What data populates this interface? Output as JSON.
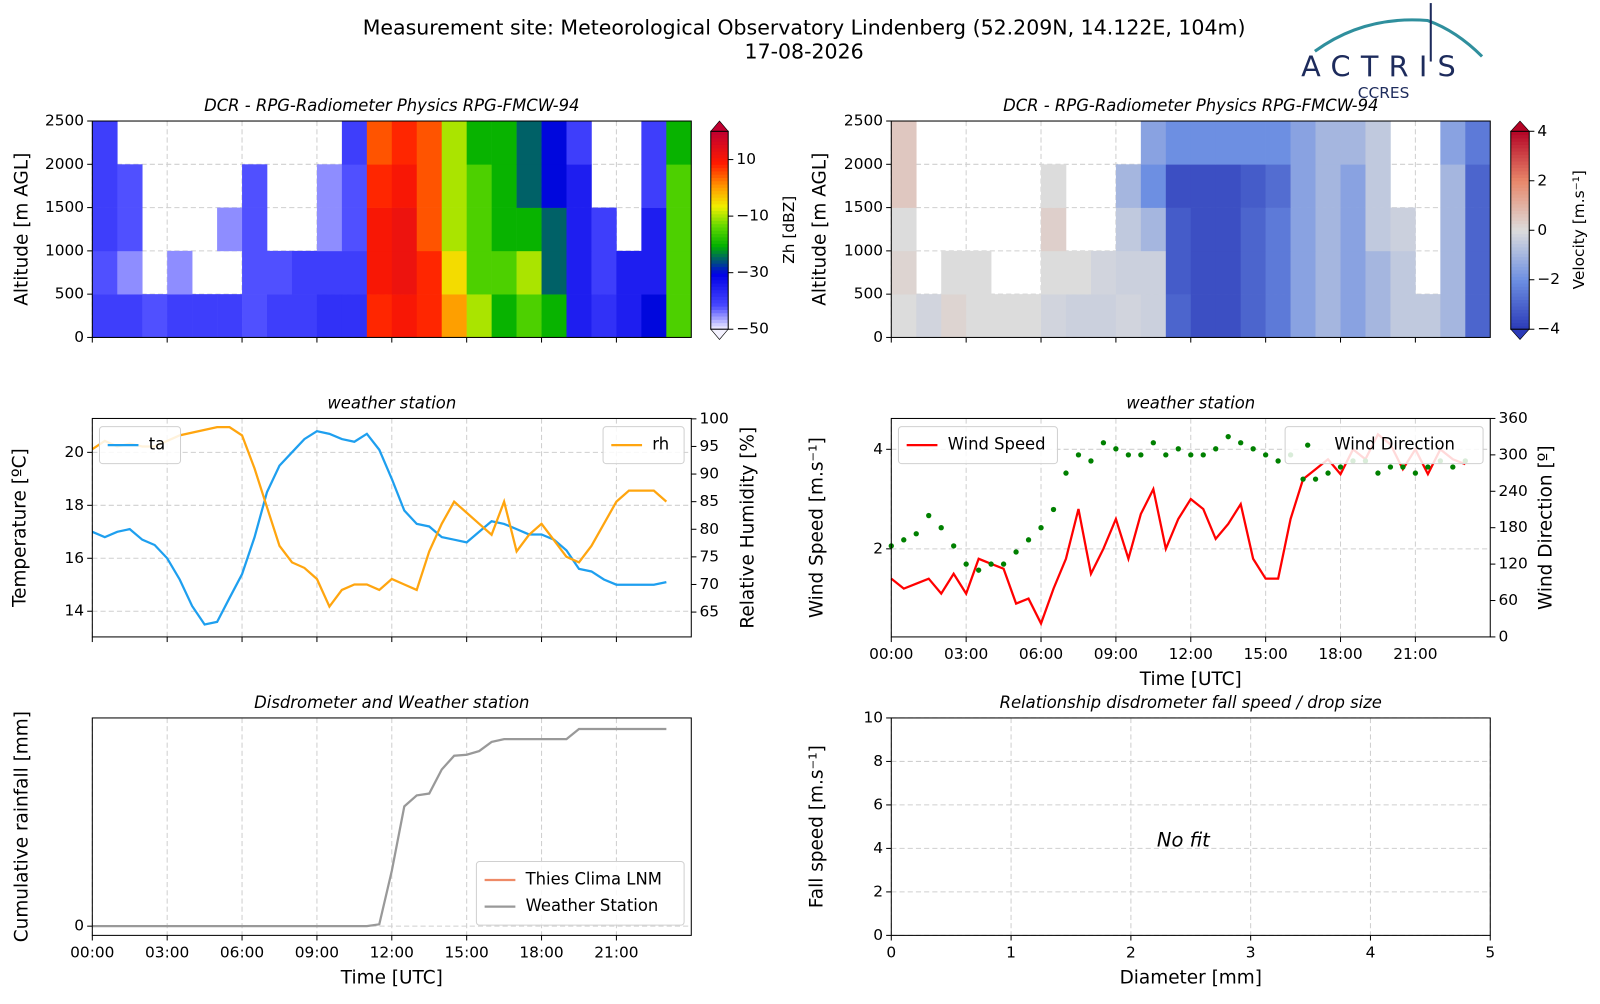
{
  "header": {
    "title": "Measurement site: Meteorological Observatory Lindenberg (52.209N, 14.122E, 104m)",
    "date": "17-08-2026",
    "logo": "ACTRIS",
    "logo_sub": "CCRES"
  },
  "chart_data": [
    {
      "type": "heatmap",
      "title": "DCR - RPG-Radiometer Physics RPG-FMCW-94",
      "ylabel": "Altitude [m AGL]",
      "xlim": [
        0,
        24
      ],
      "xticks": [
        0,
        3,
        6,
        9,
        12,
        15,
        18,
        21
      ],
      "xtick_labels": false,
      "ylim": [
        0,
        2500
      ],
      "yticks": [
        0,
        500,
        1000,
        1500,
        2000,
        2500
      ],
      "grid": true,
      "xbins": [
        0,
        1,
        2,
        3,
        4,
        5,
        6,
        7,
        8,
        9,
        10,
        11,
        12,
        13,
        14,
        15,
        16,
        17,
        18,
        19,
        20,
        21,
        22,
        23,
        24
      ],
      "ybins": [
        0,
        500,
        1000,
        1500,
        2000,
        2500
      ],
      "values": [
        [
          -40,
          -40,
          -42,
          -40,
          -40,
          -40,
          -42,
          -40,
          -40,
          -38,
          -38,
          8,
          10,
          8,
          0,
          -10,
          -20,
          -15,
          -20,
          -35,
          -38,
          -35,
          -30,
          -15
        ],
        [
          -42,
          -45,
          null,
          -45,
          null,
          null,
          -42,
          -42,
          -40,
          -40,
          -40,
          10,
          12,
          8,
          -5,
          -15,
          -15,
          -10,
          -25,
          -35,
          -40,
          -35,
          -35,
          -15
        ],
        [
          -40,
          -42,
          null,
          null,
          null,
          -45,
          -42,
          null,
          null,
          -45,
          -42,
          10,
          12,
          5,
          -10,
          -15,
          -20,
          -20,
          -25,
          -35,
          -40,
          null,
          -35,
          -15
        ],
        [
          -40,
          -42,
          null,
          null,
          null,
          null,
          -42,
          null,
          null,
          -45,
          -42,
          8,
          10,
          5,
          -10,
          -15,
          -20,
          -25,
          -30,
          -35,
          null,
          null,
          -40,
          -15
        ],
        [
          -40,
          null,
          null,
          null,
          null,
          null,
          null,
          null,
          null,
          null,
          -40,
          5,
          8,
          5,
          -10,
          -20,
          -20,
          -25,
          -30,
          -40,
          null,
          null,
          -40,
          -20
        ]
      ],
      "colormap": "jet",
      "clim": [
        -50,
        20
      ],
      "cticks": [
        {
          "value": -50,
          "label": "−50"
        },
        {
          "value": -30,
          "label": "−30"
        },
        {
          "value": -10,
          "label": "−10"
        },
        10
      ],
      "clabel": "Zh [dBZ]"
    },
    {
      "type": "heatmap",
      "title": "DCR - RPG-Radiometer Physics RPG-FMCW-94",
      "ylabel": "Altitude [m AGL]",
      "xlim": [
        0,
        24
      ],
      "xticks": [
        0,
        3,
        6,
        9,
        12,
        15,
        18,
        21
      ],
      "xtick_labels": false,
      "ylim": [
        0,
        2500
      ],
      "yticks": [
        0,
        500,
        1000,
        1500,
        2000,
        2500
      ],
      "grid": true,
      "xbins": [
        0,
        1,
        2,
        3,
        4,
        5,
        6,
        7,
        8,
        9,
        10,
        11,
        12,
        13,
        14,
        15,
        16,
        17,
        18,
        19,
        20,
        21,
        22,
        23,
        24
      ],
      "ybins": [
        0,
        500,
        1000,
        1500,
        2000,
        2500
      ],
      "values": [
        [
          0,
          -0.2,
          0.2,
          0,
          0,
          0,
          -0.2,
          -0.3,
          -0.3,
          -0.2,
          -0.3,
          -3,
          -3.5,
          -3.5,
          -3,
          -2.5,
          -1.5,
          -1,
          -1.5,
          -1,
          -0.5,
          -0.5,
          -1,
          -3
        ],
        [
          0.2,
          null,
          0,
          0,
          null,
          null,
          0,
          0,
          -0.2,
          -0.3,
          -0.3,
          -3.2,
          -3.5,
          -3.5,
          -3,
          -2.5,
          -1.5,
          -1,
          -1.5,
          -1,
          -0.5,
          null,
          -1,
          -3
        ],
        [
          0,
          null,
          null,
          null,
          null,
          null,
          0.3,
          null,
          null,
          -0.5,
          -1,
          -3.2,
          -3.5,
          -3.5,
          -3,
          -2.5,
          -1.5,
          -1,
          -1.5,
          -0.5,
          -0.3,
          null,
          -1,
          -3
        ],
        [
          0.5,
          null,
          null,
          null,
          null,
          null,
          0,
          null,
          null,
          -1,
          -2,
          -3.5,
          -3.5,
          -3.5,
          -3.2,
          -2.8,
          -1.5,
          -1,
          -1.5,
          -0.5,
          null,
          null,
          -1,
          -3
        ],
        [
          0.5,
          null,
          null,
          null,
          null,
          null,
          null,
          null,
          null,
          null,
          -1.5,
          -2,
          -2,
          -2,
          -2,
          -2,
          -1.5,
          -1,
          -1,
          -0.5,
          null,
          null,
          -1.5,
          -2.5
        ]
      ],
      "colormap": "coolwarm",
      "clim": [
        -4,
        4
      ],
      "cticks": [
        {
          "value": -4,
          "label": "−4"
        },
        {
          "value": -2,
          "label": "−2"
        },
        0,
        2,
        4
      ],
      "clabel": "Velocity [m.s⁻¹]"
    },
    {
      "type": "line",
      "title": "weather station",
      "ylabel": "Temperature [ºC]",
      "y2label": "Relative Humidity [%]",
      "xlim": [
        0,
        24
      ],
      "xticks": [
        0,
        3,
        6,
        9,
        12,
        15,
        18,
        21
      ],
      "xtick_labels": false,
      "ylim": [
        13.03,
        21.28
      ],
      "yticks": [
        14,
        16,
        18,
        20
      ],
      "y2lim": [
        60.5,
        100.07
      ],
      "y2ticks": [
        65,
        70,
        75,
        80,
        85,
        90,
        95,
        100
      ],
      "grid": true,
      "x": [
        0,
        0.5,
        1,
        1.5,
        2,
        2.5,
        3,
        3.5,
        4,
        4.5,
        5,
        5.5,
        6,
        6.5,
        7,
        7.5,
        8,
        8.5,
        9,
        9.5,
        10,
        10.5,
        11,
        11.5,
        12,
        12.5,
        13,
        13.5,
        14,
        14.5,
        15,
        15.5,
        16,
        16.5,
        17,
        17.5,
        18,
        18.5,
        19,
        19.5,
        20,
        20.5,
        21,
        21.5,
        22,
        22.5,
        23
      ],
      "series": [
        {
          "name": "ta",
          "color": "#1e9fef",
          "legend": "upper left",
          "values": [
            17.0,
            16.8,
            17.0,
            17.1,
            16.7,
            16.5,
            16.0,
            15.2,
            14.2,
            13.5,
            13.6,
            14.5,
            15.4,
            16.8,
            18.5,
            19.5,
            20.0,
            20.5,
            20.8,
            20.7,
            20.5,
            20.4,
            20.7,
            20.1,
            19.0,
            17.8,
            17.3,
            17.2,
            16.8,
            16.7,
            16.6,
            17.0,
            17.4,
            17.3,
            17.1,
            16.9,
            16.9,
            16.7,
            16.3,
            15.6,
            15.5,
            15.2,
            15.0,
            15.0,
            15.0,
            15.0,
            15.1
          ]
        },
        {
          "name": "rh",
          "color": "#ffa50f",
          "axis": "y2",
          "legend": "upper right",
          "values": [
            94.5,
            96,
            95,
            95.5,
            95,
            95,
            96,
            97,
            97.5,
            98,
            98.5,
            98.5,
            97,
            91,
            84,
            77,
            74,
            73,
            71,
            66,
            69,
            70,
            70,
            69,
            71,
            70,
            69,
            76,
            81,
            85,
            83,
            81,
            79,
            85,
            76,
            79,
            81,
            78,
            75,
            74,
            77,
            81,
            85,
            87,
            87,
            87,
            85
          ]
        }
      ]
    },
    {
      "type": "line",
      "title": "weather station",
      "ylabel": "Wind Speed [m.s⁻¹]",
      "y2label": "Wind Direction [º]",
      "xlabel": "Time [UTC]",
      "xlim": [
        0,
        24
      ],
      "xticks": [
        {
          "value": 0,
          "label": "00:00"
        },
        {
          "value": 3,
          "label": "03:00"
        },
        {
          "value": 6,
          "label": "06:00"
        },
        {
          "value": 9,
          "label": "09:00"
        },
        {
          "value": 12,
          "label": "12:00"
        },
        {
          "value": 15,
          "label": "15:00"
        },
        {
          "value": 18,
          "label": "18:00"
        },
        {
          "value": 21,
          "label": "21:00"
        }
      ],
      "ylim": [
        0.23,
        4.62
      ],
      "yticks": [
        2,
        4
      ],
      "y2lim": [
        0,
        360
      ],
      "y2ticks": [
        0,
        60,
        120,
        180,
        240,
        300,
        360
      ],
      "grid": true,
      "x": [
        0,
        0.5,
        1,
        1.5,
        2,
        2.5,
        3,
        3.5,
        4,
        4.5,
        5,
        5.5,
        6,
        6.5,
        7,
        7.5,
        8,
        8.5,
        9,
        9.5,
        10,
        10.5,
        11,
        11.5,
        12,
        12.5,
        13,
        13.5,
        14,
        14.5,
        15,
        15.5,
        16,
        16.5,
        17,
        17.5,
        18,
        18.5,
        19,
        19.5,
        20,
        20.5,
        21,
        21.5,
        22,
        22.5,
        23
      ],
      "series": [
        {
          "name": "Wind Speed",
          "color": "#ff0000",
          "legend": "upper left",
          "values": [
            1.4,
            1.2,
            1.3,
            1.4,
            1.1,
            1.5,
            1.1,
            1.8,
            1.7,
            1.6,
            0.9,
            1.0,
            0.5,
            1.2,
            1.8,
            2.8,
            1.5,
            2.0,
            2.6,
            1.8,
            2.7,
            3.2,
            2.0,
            2.6,
            3.0,
            2.8,
            2.2,
            2.5,
            2.9,
            1.8,
            1.4,
            1.4,
            2.6,
            3.4,
            3.6,
            3.8,
            3.5,
            4.0,
            3.8,
            4.3,
            4.1,
            3.6,
            4.0,
            3.5,
            4.0,
            3.8,
            3.7
          ]
        },
        {
          "name": "Wind Direction",
          "color": "#008000",
          "axis": "y2",
          "mark": "dot",
          "legend": "upper right",
          "values": [
            150,
            160,
            170,
            200,
            180,
            150,
            120,
            110,
            120,
            120,
            140,
            160,
            180,
            210,
            270,
            300,
            290,
            320,
            310,
            300,
            300,
            320,
            300,
            310,
            300,
            300,
            310,
            330,
            320,
            310,
            300,
            290,
            300,
            260,
            260,
            270,
            280,
            290,
            290,
            270,
            280,
            280,
            270,
            280,
            290,
            280,
            290
          ]
        }
      ]
    },
    {
      "type": "line",
      "title": "Disdrometer and Weather station",
      "ylabel": "Cumulative rainfall [mm]",
      "xlabel": "Time [UTC]",
      "xlim": [
        0,
        24
      ],
      "xticks": [
        {
          "value": 0,
          "label": "00:00"
        },
        {
          "value": 3,
          "label": "03:00"
        },
        {
          "value": 6,
          "label": "06:00"
        },
        {
          "value": 9,
          "label": "09:00"
        },
        {
          "value": 12,
          "label": "12:00"
        },
        {
          "value": 15,
          "label": "15:00"
        },
        {
          "value": 18,
          "label": "18:00"
        },
        {
          "value": 21,
          "label": "21:00"
        }
      ],
      "ylim": [
        -0.1,
        2.26
      ],
      "yticks": [
        0
      ],
      "grid": true,
      "x": [
        0,
        0.5,
        1,
        1.5,
        2,
        2.5,
        3,
        3.5,
        4,
        4.5,
        5,
        5.5,
        6,
        6.5,
        7,
        7.5,
        8,
        8.5,
        9,
        9.5,
        10,
        10.5,
        11,
        11.5,
        12,
        12.5,
        13,
        13.5,
        14,
        14.5,
        15,
        15.5,
        16,
        16.5,
        17,
        17.5,
        18,
        18.5,
        19,
        19.5,
        20,
        20.5,
        21,
        21.5,
        22,
        22.5,
        23
      ],
      "series": [
        {
          "name": "Thies Clima LNM",
          "color": "#ee8a66",
          "legend": "lower right"
        },
        {
          "name": "Weather Station",
          "color": "#999999",
          "legend": "lower right",
          "values": [
            0,
            0,
            0,
            0,
            0,
            0,
            0,
            0,
            0,
            0,
            0,
            0,
            0,
            0,
            0,
            0,
            0,
            0,
            0,
            0,
            0,
            0,
            0,
            0.02,
            0.6,
            1.3,
            1.42,
            1.44,
            1.7,
            1.85,
            1.86,
            1.9,
            2.0,
            2.03,
            2.03,
            2.03,
            2.03,
            2.03,
            2.03,
            2.14,
            2.14,
            2.14,
            2.14,
            2.14,
            2.14,
            2.14,
            2.14
          ]
        }
      ]
    },
    {
      "type": "scatter",
      "title": "Relationship disdrometer fall speed / drop size",
      "ylabel": "Fall speed [m.s⁻¹]",
      "xlabel": "Diameter [mm]",
      "xlim": [
        0,
        5
      ],
      "xticks": [
        0,
        1,
        2,
        3,
        4,
        5
      ],
      "ylim": [
        0,
        10
      ],
      "yticks": [
        0,
        2,
        4,
        6,
        8,
        10
      ],
      "grid": true,
      "annotation": "No fit",
      "series": []
    }
  ]
}
